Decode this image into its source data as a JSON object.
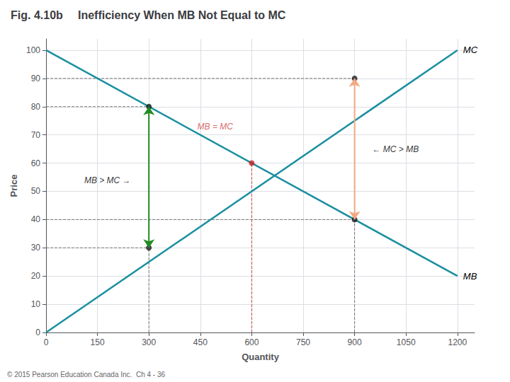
{
  "chart_data": {
    "type": "line",
    "title": "Inefficiency When MB Not Equal to MC",
    "subtitle": "Fig. 4.10b",
    "xlabel": "Quantity",
    "ylabel": "Price",
    "xlim": [
      0,
      1250
    ],
    "ylim": [
      0,
      104
    ],
    "xticks": [
      0,
      150,
      300,
      450,
      600,
      750,
      900,
      1050,
      1200
    ],
    "yticks": [
      0,
      10,
      20,
      30,
      40,
      50,
      60,
      70,
      80,
      90,
      100
    ],
    "grid": true,
    "series": [
      {
        "name": "MB",
        "type": "line",
        "color": "#1a8fa0",
        "x": [
          0,
          1200
        ],
        "values": [
          100,
          20
        ]
      },
      {
        "name": "MC",
        "type": "line",
        "color": "#1a8fa0",
        "x": [
          0,
          1200
        ],
        "values": [
          0,
          100
        ]
      },
      {
        "type": "line",
        "line_style": "dashed",
        "color": "#777777",
        "x": [
          300,
          300
        ],
        "values": [
          0,
          80
        ]
      },
      {
        "type": "line",
        "line_style": "dashed",
        "color": "#777777",
        "x": [
          0,
          300
        ],
        "values": [
          80,
          80
        ]
      },
      {
        "type": "line",
        "line_style": "dashed",
        "color": "#777777",
        "x": [
          0,
          300
        ],
        "values": [
          30,
          30
        ]
      },
      {
        "type": "line",
        "line_style": "dashed",
        "color": "#777777",
        "x": [
          900,
          900
        ],
        "values": [
          0,
          90
        ]
      },
      {
        "type": "line",
        "line_style": "dashed",
        "color": "#777777",
        "x": [
          0,
          900
        ],
        "values": [
          90,
          90
        ]
      },
      {
        "type": "line",
        "line_style": "dashed",
        "color": "#777777",
        "x": [
          0,
          900
        ],
        "values": [
          40,
          40
        ]
      },
      {
        "type": "line",
        "line_style": "dashed",
        "color": "#cc4444",
        "x": [
          600,
          600
        ],
        "values": [
          0,
          60
        ]
      },
      {
        "type": "line",
        "marker": "arrow",
        "color": "#228B22",
        "x": [
          300,
          300
        ],
        "values": [
          30,
          80
        ]
      },
      {
        "type": "line",
        "marker": "arrow",
        "color": "#F4A882",
        "x": [
          900,
          900
        ],
        "values": [
          40,
          90
        ]
      },
      {
        "type": "scatter",
        "color": "#1a1a1a",
        "x": [
          300,
          300,
          900,
          900
        ],
        "values": [
          80,
          30,
          90,
          40
        ]
      },
      {
        "type": "scatter",
        "color": "#cc2222",
        "x": [
          600
        ],
        "values": [
          60
        ]
      }
    ],
    "annotations": [
      {
        "text": "MB = MC",
        "x": 430,
        "y": 73,
        "color": "#cc4444"
      },
      {
        "text": "MB > MC →",
        "x": 100,
        "y": 54
      },
      {
        "text": "← MC > MB",
        "x": 940,
        "y": 65
      },
      {
        "text": "© 2015 Pearson Education Canada Inc.  Ch 4 - 36",
        "color": "#666666"
      }
    ]
  }
}
